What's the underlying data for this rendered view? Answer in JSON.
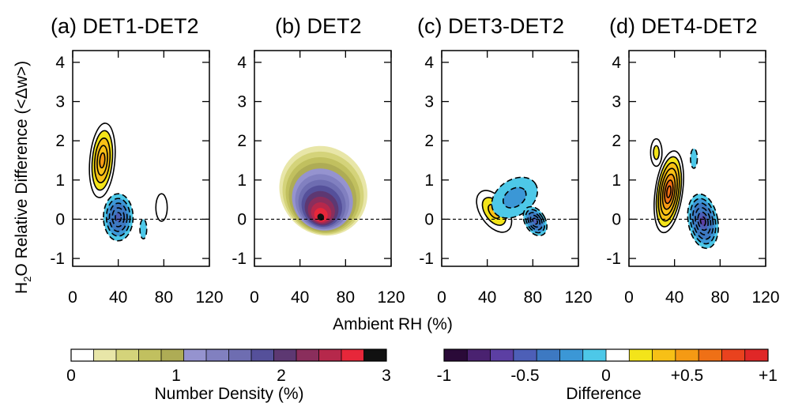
{
  "figure": {
    "ylabel_main": "H",
    "ylabel_sub": "2",
    "ylabel_rest": "O Relative Difference (<Δw>)",
    "xlabel": "Ambient RH (%)"
  },
  "chart_data": [
    {
      "panel": "a",
      "type": "contour",
      "title": "(a) DET1-DET2",
      "quantity": "difference",
      "x_ticks": [
        "0",
        "40",
        "80",
        "120"
      ],
      "y_ticks": [
        "4",
        "3",
        "2",
        "1",
        "0",
        "-1"
      ],
      "xlim": [
        0,
        120
      ],
      "ylim": [
        -1.2,
        4.3
      ],
      "reference_line_y": 0,
      "positive_regions": [
        {
          "center": [
            26,
            1.5
          ],
          "rx": 11,
          "ry": 0.95,
          "rot": 5,
          "peak": 0.5
        },
        {
          "center": [
            78,
            0.3
          ],
          "rx": 5,
          "ry": 0.35,
          "rot": 0,
          "peak": 0.15
        }
      ],
      "negative_regions": [
        {
          "center": [
            40,
            0.05
          ],
          "rx": 13,
          "ry": 0.6,
          "rot": 0,
          "peak": -0.5
        },
        {
          "center": [
            62,
            -0.25
          ],
          "rx": 3,
          "ry": 0.25,
          "rot": 0,
          "peak": -0.15
        }
      ]
    },
    {
      "panel": "b",
      "type": "contour",
      "title": "(b) DET2",
      "quantity": "number_density",
      "x_ticks": [
        "0",
        "40",
        "80",
        "120"
      ],
      "y_ticks": [
        "4",
        "3",
        "2",
        "1",
        "0",
        "-1"
      ],
      "xlim": [
        0,
        120
      ],
      "ylim": [
        -1.2,
        4.3
      ],
      "reference_line_y": 0,
      "peak": {
        "x": 58,
        "y": 0.0,
        "value": 2.6
      },
      "outer_extent": {
        "x": [
          23,
          98
        ],
        "y": [
          -0.45,
          1.9
        ]
      }
    },
    {
      "panel": "c",
      "type": "contour",
      "title": "(c) DET3-DET2",
      "quantity": "difference",
      "x_ticks": [
        "0",
        "40",
        "80",
        "120"
      ],
      "y_ticks": [
        "4",
        "3",
        "2",
        "1",
        "0",
        "-1"
      ],
      "xlim": [
        0,
        120
      ],
      "ylim": [
        -1.2,
        4.3
      ],
      "reference_line_y": 0,
      "positive_regions": [
        {
          "center": [
            46,
            0.2
          ],
          "rx": 12,
          "ry": 0.6,
          "rot": -35,
          "peak": 0.3
        }
      ],
      "negative_regions": [
        {
          "center": [
            64,
            0.55
          ],
          "rx": 22,
          "ry": 0.45,
          "rot": -35,
          "peak": -0.2
        },
        {
          "center": [
            82,
            -0.05
          ],
          "rx": 9,
          "ry": 0.4,
          "rot": -30,
          "peak": -0.45
        }
      ]
    },
    {
      "panel": "d",
      "type": "contour",
      "title": "(d) DET4-DET2",
      "quantity": "difference",
      "x_ticks": [
        "0",
        "40",
        "80",
        "120"
      ],
      "y_ticks": [
        "4",
        "3",
        "2",
        "1",
        "0",
        "-1"
      ],
      "xlim": [
        0,
        120
      ],
      "ylim": [
        -1.2,
        4.3
      ],
      "reference_line_y": 0,
      "positive_regions": [
        {
          "center": [
            35,
            0.7
          ],
          "rx": 12,
          "ry": 1.05,
          "rot": 8,
          "peak": 0.65
        },
        {
          "center": [
            24,
            1.7
          ],
          "rx": 5,
          "ry": 0.35,
          "rot": 0,
          "peak": 0.2
        }
      ],
      "negative_regions": [
        {
          "center": [
            65,
            -0.05
          ],
          "rx": 13,
          "ry": 0.7,
          "rot": -10,
          "peak": -0.55
        },
        {
          "center": [
            57,
            1.55
          ],
          "rx": 3,
          "ry": 0.25,
          "rot": 0,
          "peak": -0.15
        }
      ]
    }
  ],
  "colorbars": [
    {
      "name": "number_density",
      "label": "Number Density (%)",
      "ticks": [
        "0",
        "1",
        "2",
        "3"
      ],
      "range": [
        0,
        3
      ],
      "colors": [
        "#ffffff",
        "#e8e6a8",
        "#d4d37a",
        "#c1c05f",
        "#aeac55",
        "#9593cf",
        "#8180c0",
        "#6e6db1",
        "#55509a",
        "#5d3872",
        "#8a2e5c",
        "#b6284b",
        "#e7273a",
        "#111111"
      ]
    },
    {
      "name": "difference",
      "label": "Difference",
      "ticks": [
        "-1",
        "-0.5",
        "0",
        "+0.5",
        "+1"
      ],
      "range": [
        -1,
        1
      ],
      "colors": [
        "#2a0a38",
        "#4a2270",
        "#5c3fa3",
        "#4d5fb7",
        "#3d79c2",
        "#3b97d6",
        "#4dc8e8",
        "#ffffff",
        "#f3e41a",
        "#f7c016",
        "#f59a14",
        "#ef7016",
        "#e9421e",
        "#e02727"
      ]
    }
  ]
}
